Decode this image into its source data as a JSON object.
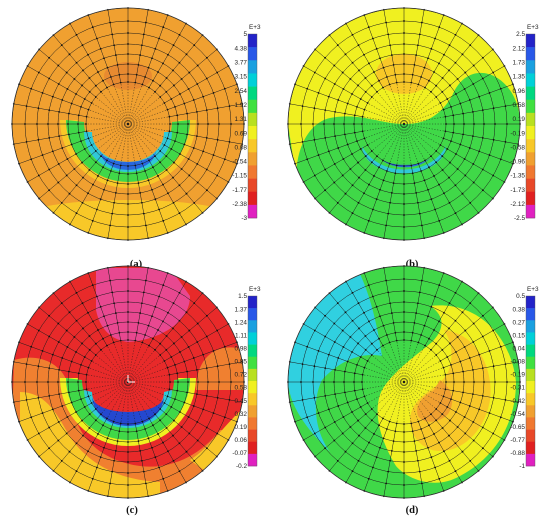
{
  "panels": [
    {
      "id": "a",
      "caption": "(a)",
      "colorbar": {
        "unit": "E+3",
        "ticks": [
          "5",
          "4.38",
          "3.77",
          "3.15",
          "2.54",
          "1.92",
          "1.31",
          "0.69",
          "0.08",
          "-0.54",
          "-1.15",
          "-1.77",
          "-2.38",
          "-3"
        ],
        "colors": [
          "#2323c8",
          "#2858e8",
          "#1aa0e0",
          "#00d0d8",
          "#00d880",
          "#40e040",
          "#b8e020",
          "#f0f020",
          "#f8c828",
          "#f0a030",
          "#f07830",
          "#e84828",
          "#e02020",
          "#e020c0"
        ]
      }
    },
    {
      "id": "b",
      "caption": "(b)",
      "colorbar": {
        "unit": "E+3",
        "ticks": [
          "2.5",
          "2.12",
          "1.73",
          "1.35",
          "0.96",
          "0.58",
          "0.19",
          "-0.19",
          "-0.58",
          "-0.96",
          "-1.35",
          "-1.73",
          "-2.12",
          "-2.5"
        ],
        "colors": [
          "#2323c8",
          "#2858e8",
          "#1aa0e0",
          "#00d0d8",
          "#00d880",
          "#40e040",
          "#b8e020",
          "#f0f020",
          "#f8c828",
          "#f0a030",
          "#f07830",
          "#e84828",
          "#e02020",
          "#e020c0"
        ]
      }
    },
    {
      "id": "c",
      "caption": "(c)",
      "colorbar": {
        "unit": "E+3",
        "ticks": [
          "1.5",
          "1.37",
          "1.24",
          "1.11",
          "0.98",
          "0.85",
          "0.72",
          "0.58",
          "0.45",
          "0.32",
          "0.19",
          "0.06",
          "-0.07",
          "-0.2"
        ],
        "colors": [
          "#2323c8",
          "#2858e8",
          "#1aa0e0",
          "#00d0d8",
          "#00d880",
          "#40e040",
          "#b8e020",
          "#f0f020",
          "#f8c828",
          "#f0a030",
          "#f07830",
          "#e84828",
          "#e02020",
          "#e020c0"
        ]
      }
    },
    {
      "id": "d",
      "caption": "(d)",
      "colorbar": {
        "unit": "E+3",
        "ticks": [
          "0.5",
          "0.38",
          "0.27",
          "0.15",
          "0.04",
          "-0.08",
          "-0.19",
          "-0.31",
          "-0.42",
          "-0.54",
          "-0.65",
          "-0.77",
          "-0.88",
          "-1"
        ],
        "colors": [
          "#2323c8",
          "#2858e8",
          "#1aa0e0",
          "#00d0d8",
          "#00d880",
          "#40e040",
          "#b8e020",
          "#f0f020",
          "#f8c828",
          "#f0a030",
          "#f07830",
          "#e84828",
          "#e02020",
          "#e020c0"
        ]
      }
    }
  ]
}
